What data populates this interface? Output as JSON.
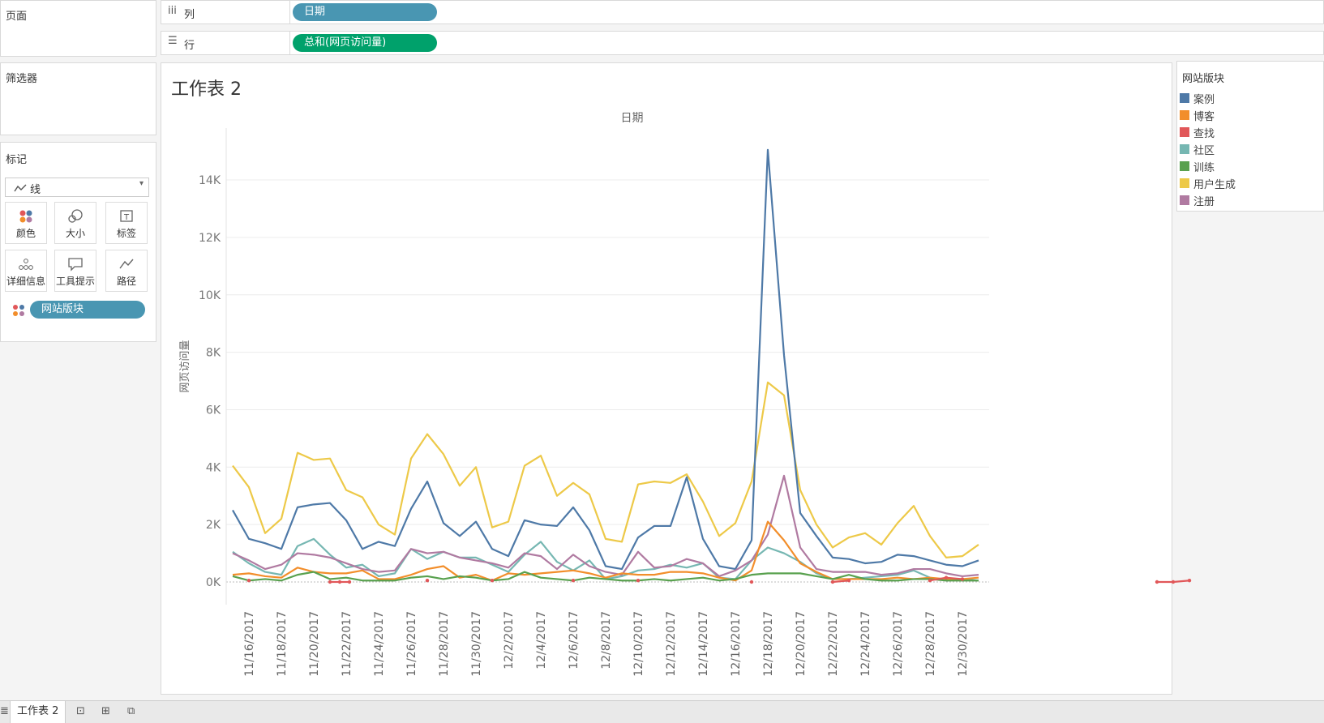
{
  "pages_panel": {
    "title": "页面"
  },
  "filters_panel": {
    "title": "筛选器"
  },
  "marks_panel": {
    "title": "标记",
    "mark_type": "线",
    "buttons": [
      {
        "label": "颜色",
        "icon": "color-icon"
      },
      {
        "label": "大小",
        "icon": "size-icon"
      },
      {
        "label": "标签",
        "icon": "label-icon"
      },
      {
        "label": "详细信息",
        "icon": "detail-icon"
      },
      {
        "label": "工具提示",
        "icon": "tooltip-icon"
      },
      {
        "label": "路径",
        "icon": "path-icon"
      }
    ],
    "color_pill": "网站版块"
  },
  "shelves": {
    "columns": {
      "label": "列",
      "pill": "日期",
      "pill_color": "#4996b2"
    },
    "rows": {
      "label": "行",
      "pill": "总和(网页访问量)",
      "pill_color": "#00a16b"
    }
  },
  "worksheet": {
    "title": "工作表 2"
  },
  "legend": {
    "title": "网站版块",
    "items": [
      {
        "label": "案例",
        "color": "#4e79a7"
      },
      {
        "label": "博客",
        "color": "#f28e2b"
      },
      {
        "label": "查找",
        "color": "#e15759"
      },
      {
        "label": "社区",
        "color": "#76b7b2"
      },
      {
        "label": "训练",
        "color": "#59a14f"
      },
      {
        "label": "用户生成",
        "color": "#edc948"
      },
      {
        "label": "注册",
        "color": "#b07aa1"
      }
    ]
  },
  "bottom_tabs": {
    "active": "工作表 2"
  },
  "chart_data": {
    "type": "line",
    "title": "日期",
    "xlabel": "日期",
    "ylabel": "网页访问量",
    "ylim": [
      -800,
      15500
    ],
    "y_ticks": [
      0,
      2000,
      4000,
      6000,
      8000,
      10000,
      12000,
      14000
    ],
    "y_tick_labels": [
      "0K",
      "2K",
      "4K",
      "6K",
      "8K",
      "10K",
      "12K",
      "14K"
    ],
    "x_tick_labels": [
      "11/16/2017",
      "11/18/2017",
      "11/20/2017",
      "11/22/2017",
      "11/24/2017",
      "11/26/2017",
      "11/28/2017",
      "11/30/2017",
      "12/2/2017",
      "12/4/2017",
      "12/6/2017",
      "12/8/2017",
      "12/10/2017",
      "12/12/2017",
      "12/14/2017",
      "12/16/2017",
      "12/18/2017",
      "12/20/2017",
      "12/22/2017",
      "12/24/2017",
      "12/26/2017",
      "12/28/2017",
      "12/30/2017"
    ],
    "x_start_day_offset": -1,
    "series": [
      {
        "name": "用户生成",
        "color": "#edc948",
        "values": [
          4050,
          3300,
          1700,
          2200,
          4500,
          4250,
          4300,
          3200,
          2950,
          2000,
          1650,
          4300,
          5150,
          4450,
          3350,
          4000,
          1900,
          2100,
          4050,
          4400,
          3000,
          3450,
          3050,
          1500,
          1400,
          3400,
          3500,
          3450,
          3750,
          2800,
          1600,
          2050,
          3500,
          6950,
          6500,
          3200,
          2000,
          1200,
          1550,
          1700,
          1300,
          2050,
          2650,
          1600,
          850,
          900,
          1300
        ]
      },
      {
        "name": "案例",
        "color": "#4e79a7",
        "values": [
          2500,
          1500,
          1350,
          1150,
          2600,
          2700,
          2750,
          2150,
          1150,
          1400,
          1250,
          2550,
          3500,
          2050,
          1600,
          2100,
          1150,
          900,
          2150,
          2000,
          1950,
          2600,
          1800,
          550,
          450,
          1550,
          1950,
          1950,
          3650,
          1500,
          550,
          450,
          1450,
          15050,
          7900,
          2400,
          1600,
          850,
          800,
          650,
          700,
          950,
          900,
          750,
          600,
          550,
          750
        ]
      },
      {
        "name": "社区",
        "color": "#76b7b2",
        "values": [
          1050,
          650,
          350,
          250,
          1250,
          1500,
          950,
          500,
          600,
          200,
          300,
          1150,
          800,
          1050,
          850,
          850,
          600,
          350,
          950,
          1400,
          700,
          400,
          750,
          100,
          200,
          400,
          450,
          600,
          500,
          650,
          150,
          100,
          750,
          1200,
          1000,
          700,
          300,
          100,
          100,
          150,
          200,
          250,
          400,
          150,
          50,
          100,
          50
        ]
      },
      {
        "name": "注册",
        "color": "#b07aa1",
        "values": [
          1000,
          750,
          450,
          600,
          1000,
          950,
          850,
          650,
          450,
          350,
          400,
          1150,
          1000,
          1050,
          850,
          750,
          650,
          500,
          1000,
          900,
          450,
          950,
          550,
          350,
          250,
          1050,
          500,
          550,
          800,
          650,
          200,
          400,
          750,
          1650,
          3700,
          1200,
          450,
          350,
          350,
          350,
          250,
          300,
          450,
          450,
          300,
          200,
          250
        ]
      },
      {
        "name": "博客",
        "color": "#f28e2b",
        "values": [
          250,
          300,
          200,
          150,
          500,
          350,
          300,
          300,
          400,
          100,
          100,
          250,
          450,
          550,
          150,
          250,
          50,
          300,
          250,
          300,
          350,
          400,
          300,
          150,
          300,
          250,
          250,
          350,
          350,
          300,
          150,
          50,
          400,
          2100,
          1450,
          650,
          350,
          100,
          100,
          100,
          100,
          150,
          100,
          150,
          100,
          100,
          150
        ]
      },
      {
        "name": "训练",
        "color": "#59a14f",
        "values": [
          200,
          50,
          100,
          50,
          250,
          350,
          100,
          150,
          50,
          50,
          50,
          150,
          200,
          100,
          200,
          150,
          50,
          100,
          350,
          150,
          100,
          50,
          150,
          100,
          50,
          50,
          100,
          50,
          100,
          150,
          50,
          100,
          250,
          300,
          300,
          300,
          200,
          100,
          250,
          100,
          50,
          50,
          100,
          100,
          50,
          50,
          50
        ]
      }
    ],
    "find_segments": [
      {
        "name": "查找",
        "color": "#e15759",
        "points": [
          [
            1,
            50
          ],
          [
            6,
            0
          ],
          [
            6.6,
            0
          ],
          [
            7.2,
            0
          ],
          [
            12,
            50
          ],
          [
            16,
            50
          ],
          [
            21,
            50
          ],
          [
            25,
            50
          ],
          [
            32,
            0
          ],
          [
            37,
            0
          ],
          [
            38,
            50
          ],
          [
            43,
            50
          ],
          [
            44,
            150
          ],
          [
            45,
            100
          ],
          [
            57,
            0
          ],
          [
            58,
            0
          ],
          [
            59,
            50
          ]
        ]
      }
    ]
  }
}
